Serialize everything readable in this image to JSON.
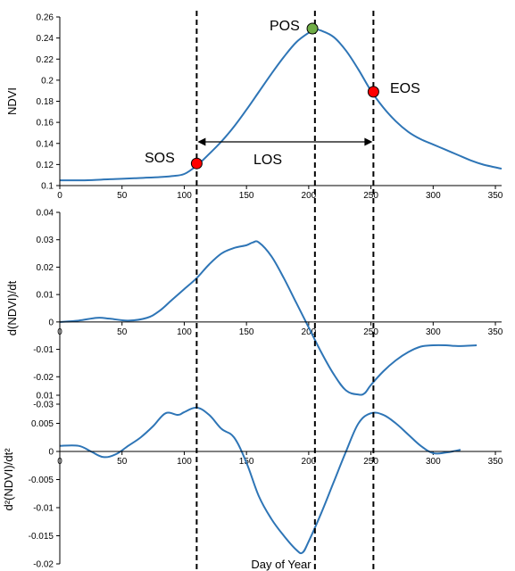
{
  "colors": {
    "line": "#2e75b6",
    "axis": "#000000",
    "sos_marker": "#ff0000",
    "eos_marker": "#ff0000",
    "pos_marker": "#70ad47"
  },
  "chart_data": [
    {
      "type": "line",
      "panel": "top",
      "xlabel": "",
      "ylabel": "NDVI",
      "xlim": [
        0,
        355
      ],
      "ylim": [
        0.1,
        0.26
      ],
      "x_ticks": [
        0,
        50,
        100,
        150,
        200,
        250,
        300,
        350
      ],
      "y_ticks": [
        "0.1",
        "0.12",
        "0.14",
        "0.16",
        "0.18",
        "0.2",
        "0.22",
        "0.24",
        "0.26"
      ],
      "grid": false,
      "series": [
        {
          "x": [
            0,
            20,
            40,
            60,
            80,
            90,
            100,
            110,
            120,
            130,
            140,
            150,
            160,
            170,
            180,
            190,
            200,
            205,
            210,
            220,
            230,
            240,
            250,
            260,
            270,
            280,
            290,
            300,
            310,
            320,
            330,
            340,
            355
          ],
          "y": [
            0.105,
            0.105,
            0.106,
            0.107,
            0.108,
            0.109,
            0.111,
            0.119,
            0.13,
            0.142,
            0.156,
            0.172,
            0.189,
            0.206,
            0.222,
            0.236,
            0.245,
            0.248,
            0.247,
            0.241,
            0.228,
            0.21,
            0.19,
            0.174,
            0.161,
            0.151,
            0.144,
            0.139,
            0.134,
            0.129,
            0.124,
            0.12,
            0.116
          ]
        }
      ],
      "annotations": [
        {
          "label": "SOS",
          "x": 110,
          "y": 0.121
        },
        {
          "label": "POS",
          "x": 203,
          "y": 0.249
        },
        {
          "label": "EOS",
          "x": 252,
          "y": 0.189
        },
        {
          "label": "LOS"
        }
      ]
    },
    {
      "type": "line",
      "panel": "middle",
      "xlabel": "",
      "ylabel": "d(NDVI)/dt",
      "xlim": [
        0,
        355
      ],
      "ylim": [
        -0.03,
        0.04
      ],
      "x_ticks": [
        0,
        50,
        100,
        150,
        200,
        250,
        300,
        350
      ],
      "y_ticks": [
        "-0.03",
        "-0.02",
        "-0.01",
        "0",
        "0.01",
        "0.02",
        "0.03",
        "0.04"
      ],
      "grid": false,
      "series": [
        {
          "x": [
            0,
            15,
            30,
            40,
            55,
            70,
            80,
            90,
            100,
            110,
            120,
            130,
            140,
            150,
            155,
            160,
            170,
            180,
            190,
            200,
            210,
            220,
            230,
            240,
            245,
            250,
            260,
            270,
            280,
            290,
            300,
            310,
            320,
            335
          ],
          "y": [
            0.0,
            0.0005,
            0.0015,
            0.0012,
            0.0005,
            0.0015,
            0.004,
            0.008,
            0.012,
            0.016,
            0.021,
            0.025,
            0.027,
            0.028,
            0.029,
            0.029,
            0.024,
            0.016,
            0.007,
            -0.002,
            -0.011,
            -0.019,
            -0.025,
            -0.0265,
            -0.026,
            -0.023,
            -0.018,
            -0.014,
            -0.011,
            -0.009,
            -0.0085,
            -0.0085,
            -0.0088,
            -0.0085
          ]
        }
      ]
    },
    {
      "type": "line",
      "panel": "bottom",
      "xlabel": "Day of Year",
      "ylabel": "d²(NDVI)/dt²",
      "xlim": [
        0,
        355
      ],
      "ylim": [
        -0.02,
        0.01
      ],
      "x_ticks": [
        0,
        50,
        100,
        150,
        200,
        250,
        300,
        350
      ],
      "y_ticks": [
        "-0.02",
        "-0.015",
        "-0.01",
        "-0.005",
        "0",
        "0.005",
        "0.01"
      ],
      "grid": false,
      "series": [
        {
          "x": [
            0,
            15,
            25,
            35,
            45,
            55,
            65,
            75,
            85,
            95,
            100,
            110,
            120,
            130,
            140,
            150,
            160,
            170,
            180,
            190,
            195,
            200,
            210,
            220,
            230,
            240,
            250,
            260,
            270,
            280,
            290,
            300,
            310,
            322
          ],
          "y": [
            0.001,
            0.001,
            0.0,
            -0.001,
            -0.0005,
            0.001,
            0.0025,
            0.0045,
            0.0068,
            0.0065,
            0.007,
            0.0078,
            0.0065,
            0.004,
            0.0025,
            -0.002,
            -0.008,
            -0.012,
            -0.015,
            -0.0175,
            -0.018,
            -0.016,
            -0.011,
            -0.0055,
            0.0,
            0.005,
            0.0068,
            0.0065,
            0.005,
            0.003,
            0.001,
            -0.0003,
            -0.0002,
            0.0003
          ]
        }
      ]
    }
  ],
  "phenology_lines": [
    110,
    205,
    252
  ]
}
